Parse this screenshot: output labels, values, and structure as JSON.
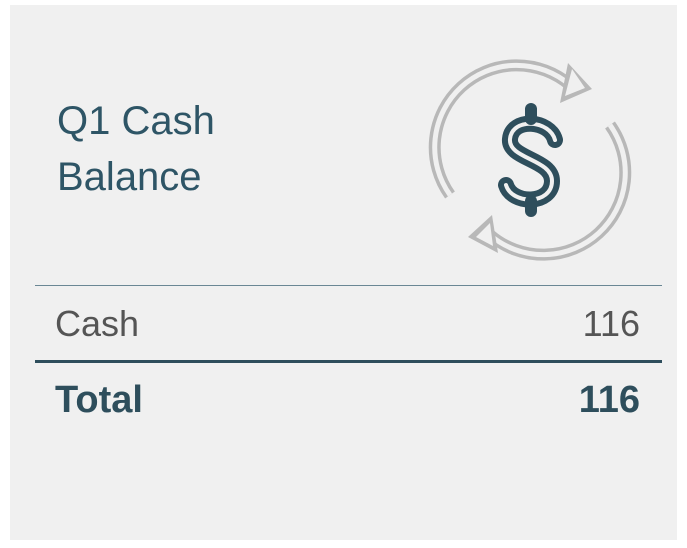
{
  "title": "Q1 Cash Balance",
  "rows": [
    {
      "label": "Cash",
      "value": "116"
    }
  ],
  "total": {
    "label": "Total",
    "value": "116"
  }
}
